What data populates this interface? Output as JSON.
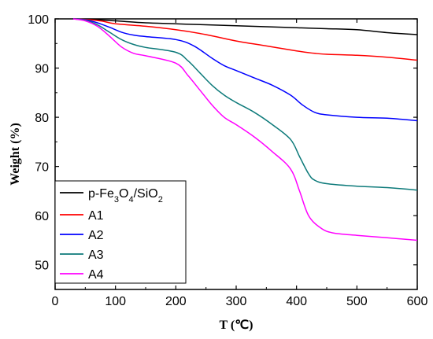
{
  "chart_data": {
    "type": "line",
    "title": "",
    "xlabel": "T  (℃)",
    "ylabel": "Weight (%)",
    "xlim": [
      0,
      600
    ],
    "ylim": [
      45,
      100
    ],
    "xticks": [
      0,
      100,
      200,
      300,
      400,
      500,
      600
    ],
    "yticks": [
      50,
      60,
      70,
      80,
      90,
      100
    ],
    "grid": false,
    "legend_position": "bottom-left",
    "series": [
      {
        "name": "p-Fe3O4/SiO2",
        "color": "#000000",
        "x": [
          30,
          60,
          100,
          150,
          200,
          250,
          300,
          350,
          400,
          450,
          500,
          550,
          600
        ],
        "y": [
          100,
          99.9,
          99.6,
          99.2,
          99.0,
          98.8,
          98.6,
          98.4,
          98.2,
          98.0,
          97.8,
          97.2,
          96.8
        ]
      },
      {
        "name": "A1",
        "color": "#ff0000",
        "x": [
          30,
          60,
          80,
          100,
          150,
          200,
          250,
          300,
          350,
          400,
          430,
          450,
          500,
          550,
          600
        ],
        "y": [
          100,
          99.8,
          99.5,
          99.0,
          98.5,
          97.8,
          96.8,
          95.5,
          94.5,
          93.5,
          93.0,
          92.8,
          92.6,
          92.2,
          91.6
        ]
      },
      {
        "name": "A2",
        "color": "#0000ff",
        "x": [
          30,
          50,
          70,
          90,
          110,
          130,
          150,
          200,
          230,
          260,
          280,
          300,
          330,
          360,
          390,
          410,
          430,
          450,
          500,
          550,
          600
        ],
        "y": [
          100,
          99.8,
          99.2,
          98.3,
          97.3,
          96.7,
          96.4,
          95.8,
          94.5,
          92.0,
          90.5,
          89.5,
          88.0,
          86.5,
          84.5,
          82.5,
          81.0,
          80.5,
          80.0,
          79.8,
          79.3
        ]
      },
      {
        "name": "A3",
        "color": "#0d7a7a",
        "x": [
          30,
          50,
          70,
          90,
          110,
          130,
          150,
          200,
          220,
          240,
          260,
          280,
          300,
          330,
          360,
          390,
          405,
          420,
          430,
          450,
          500,
          550,
          600
        ],
        "y": [
          100,
          99.7,
          98.8,
          97.3,
          95.8,
          94.8,
          94.2,
          93.2,
          91.5,
          89.0,
          86.5,
          84.5,
          83.0,
          81.0,
          78.5,
          75.5,
          72.0,
          68.5,
          67.2,
          66.5,
          66.0,
          65.7,
          65.2
        ]
      },
      {
        "name": "A4",
        "color": "#ff00ff",
        "x": [
          30,
          50,
          70,
          90,
          110,
          130,
          150,
          200,
          220,
          240,
          260,
          280,
          300,
          330,
          360,
          390,
          405,
          420,
          440,
          460,
          500,
          550,
          600
        ],
        "y": [
          100,
          99.6,
          98.5,
          96.5,
          94.3,
          93.0,
          92.5,
          91.0,
          88.5,
          85.5,
          82.5,
          80.0,
          78.5,
          76.0,
          73.0,
          69.5,
          65.0,
          60.0,
          57.5,
          56.5,
          56.0,
          55.5,
          55.0
        ]
      }
    ]
  }
}
